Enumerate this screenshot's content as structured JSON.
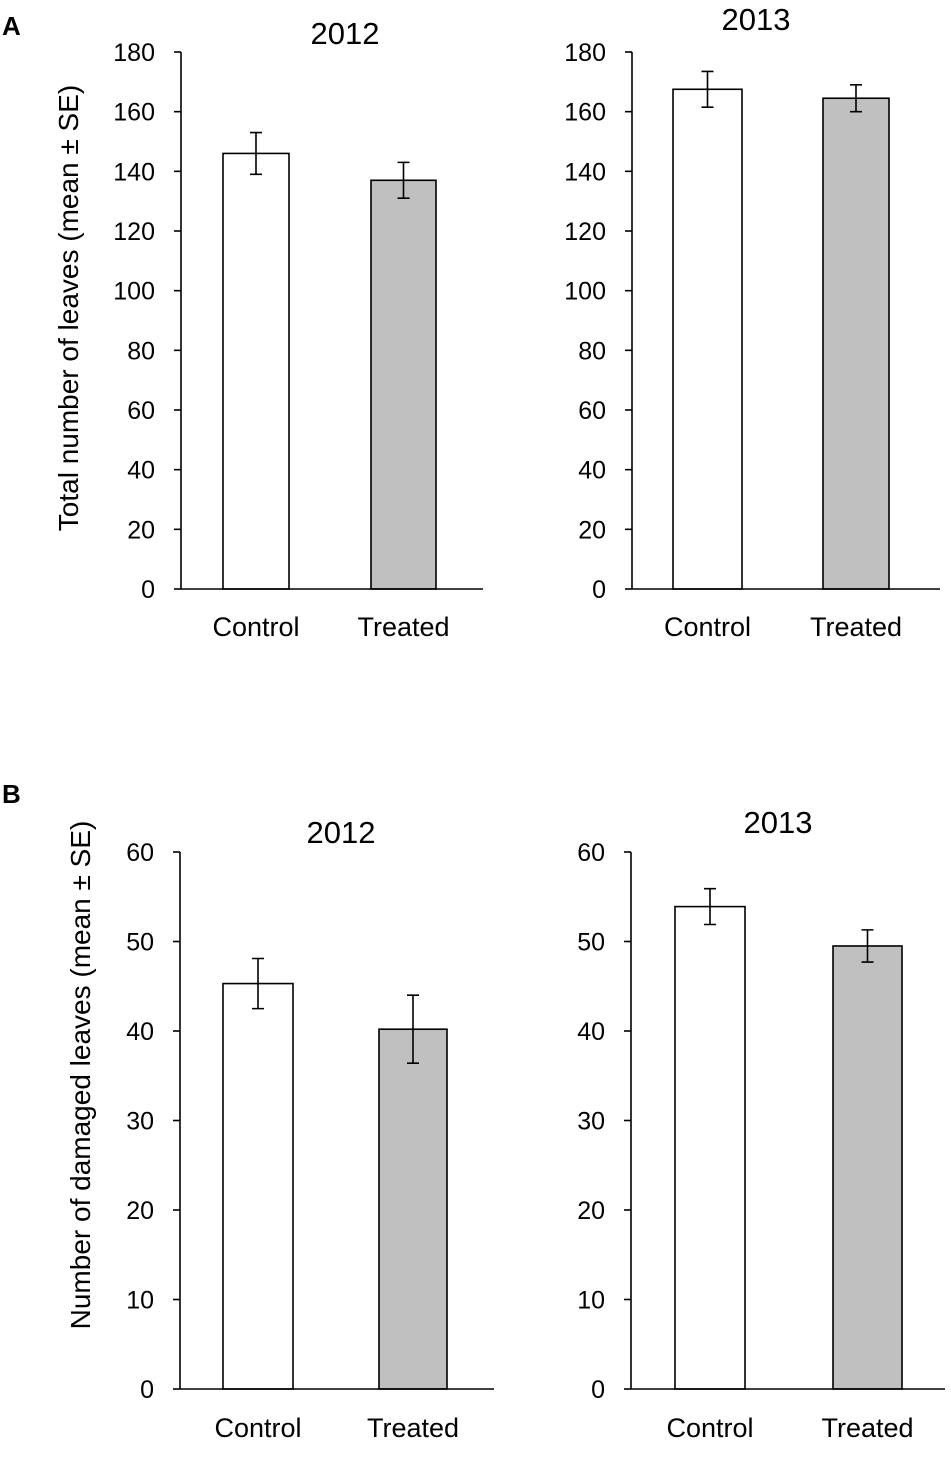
{
  "panels": [
    {
      "letter": "A",
      "ylabel": "Total number of leaves (mean ± SE)"
    },
    {
      "letter": "B",
      "ylabel": "Number of damaged leaves (mean ± SE)"
    }
  ],
  "colors": {
    "control": "#ffffff",
    "treated": "#c0c0c0",
    "axis": "#000000"
  },
  "chart_data": [
    {
      "type": "bar",
      "panel": "A",
      "title": "2012",
      "categories": [
        "Control",
        "Treated"
      ],
      "values": [
        146,
        137
      ],
      "errors": [
        7,
        6
      ],
      "ylim": [
        0,
        180
      ],
      "yticks": [
        0,
        20,
        40,
        60,
        80,
        100,
        120,
        140,
        160,
        180
      ],
      "ylabel": "Total number of leaves (mean ± SE)",
      "xlabel": ""
    },
    {
      "type": "bar",
      "panel": "A",
      "title": "2013",
      "categories": [
        "Control",
        "Treated"
      ],
      "values": [
        167.5,
        164.5
      ],
      "errors": [
        6,
        4.5
      ],
      "ylim": [
        0,
        180
      ],
      "yticks": [
        0,
        20,
        40,
        60,
        80,
        100,
        120,
        140,
        160,
        180
      ],
      "ylabel": "",
      "xlabel": ""
    },
    {
      "type": "bar",
      "panel": "B",
      "title": "2012",
      "categories": [
        "Control",
        "Treated"
      ],
      "values": [
        45.3,
        40.2
      ],
      "errors": [
        2.8,
        3.8
      ],
      "ylim": [
        0,
        60
      ],
      "yticks": [
        0,
        10,
        20,
        30,
        40,
        50,
        60
      ],
      "ylabel": "Number of damaged leaves (mean ± SE)",
      "xlabel": ""
    },
    {
      "type": "bar",
      "panel": "B",
      "title": "2013",
      "categories": [
        "Control",
        "Treated"
      ],
      "values": [
        53.9,
        49.5
      ],
      "errors": [
        2,
        1.8
      ],
      "ylim": [
        0,
        60
      ],
      "yticks": [
        0,
        10,
        20,
        30,
        40,
        50,
        60
      ],
      "ylabel": "",
      "xlabel": ""
    }
  ]
}
